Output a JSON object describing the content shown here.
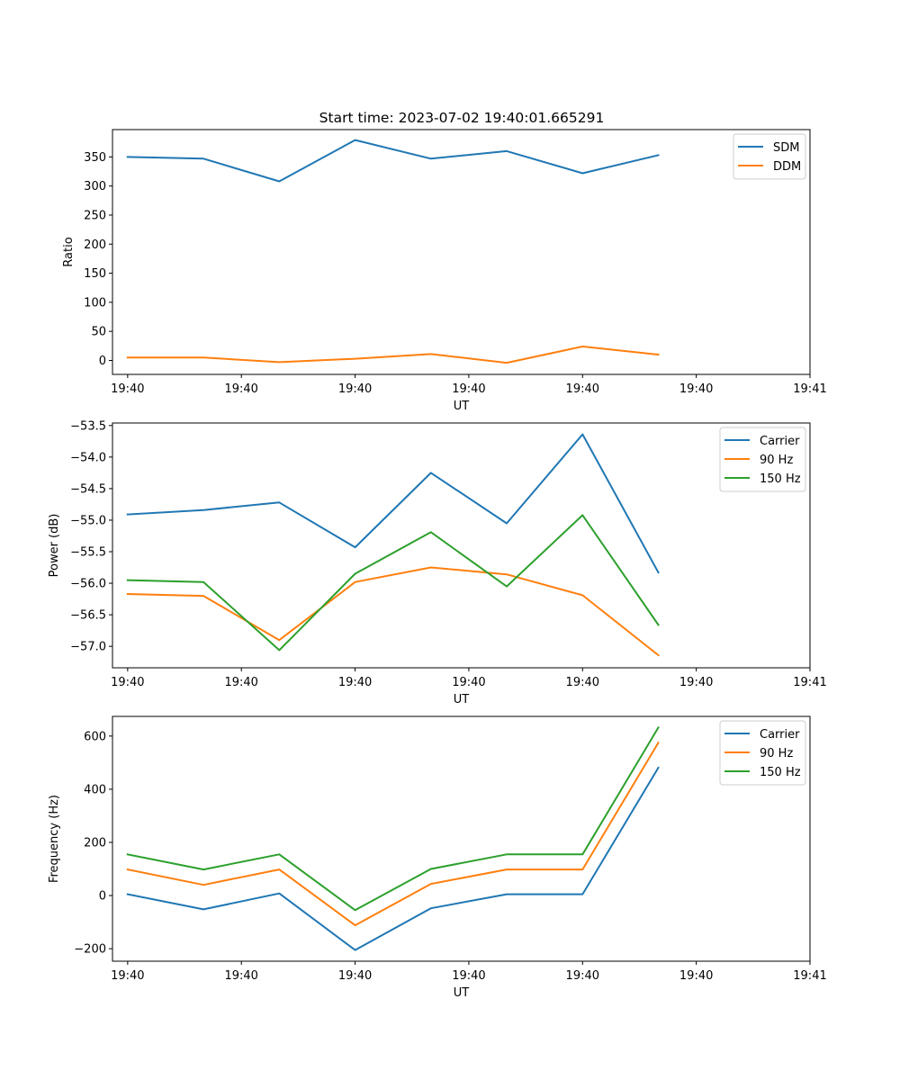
{
  "figure": {
    "title": "Start time: 2023-07-02 19:40:01.665291"
  },
  "colors": {
    "blue": "#1f77b4",
    "orange": "#ff7f0e",
    "green": "#2ca02c"
  },
  "chart_data": [
    {
      "type": "line",
      "title": "Start time: 2023-07-02 19:40:01.665291",
      "xlabel": "UT",
      "ylabel": "Ratio",
      "x": [
        1,
        2,
        3,
        4,
        5,
        6,
        7,
        8
      ],
      "xlim": [
        0.8,
        10.0
      ],
      "xticks": [
        1.0,
        2.5,
        4.0,
        5.5,
        7.0,
        8.5,
        10.0
      ],
      "xtick_labels": [
        "19:40",
        "19:40",
        "19:40",
        "19:40",
        "19:40",
        "19:40",
        "19:41"
      ],
      "ylim": [
        -24,
        397
      ],
      "yticks": [
        0,
        50,
        100,
        150,
        200,
        250,
        300,
        350
      ],
      "ytick_labels": [
        "0",
        "50",
        "100",
        "150",
        "200",
        "250",
        "300",
        "350"
      ],
      "legend": "top-right",
      "grid": false,
      "series": [
        {
          "name": "SDM",
          "color": "#1f77b4",
          "values": [
            350,
            347,
            308,
            379,
            347,
            360,
            322,
            353
          ]
        },
        {
          "name": "DDM",
          "color": "#ff7f0e",
          "values": [
            5,
            5,
            -3,
            3,
            11,
            -4,
            24,
            10
          ]
        }
      ]
    },
    {
      "type": "line",
      "title": "",
      "xlabel": "UT",
      "ylabel": "Power (dB)",
      "x": [
        1,
        2,
        3,
        4,
        5,
        6,
        7,
        8
      ],
      "xlim": [
        0.8,
        10.0
      ],
      "xticks": [
        1.0,
        2.5,
        4.0,
        5.5,
        7.0,
        8.5,
        10.0
      ],
      "xtick_labels": [
        "19:40",
        "19:40",
        "19:40",
        "19:40",
        "19:40",
        "19:40",
        "19:41"
      ],
      "ylim": [
        -57.34,
        -53.46
      ],
      "yticks": [
        -57.0,
        -56.5,
        -56.0,
        -55.5,
        -55.0,
        -54.5,
        -54.0,
        -53.5
      ],
      "ytick_labels": [
        "−57.0",
        "−56.5",
        "−56.0",
        "−55.5",
        "−55.0",
        "−54.5",
        "−54.0",
        "−53.5"
      ],
      "legend": "top-right",
      "grid": false,
      "series": [
        {
          "name": "Carrier",
          "color": "#1f77b4",
          "values": [
            -54.91,
            -54.84,
            -54.72,
            -55.43,
            -54.25,
            -55.05,
            -53.64,
            -55.83
          ]
        },
        {
          "name": "90 Hz",
          "color": "#ff7f0e",
          "values": [
            -56.17,
            -56.2,
            -56.9,
            -55.98,
            -55.75,
            -55.86,
            -56.19,
            -57.14
          ]
        },
        {
          "name": "150 Hz",
          "color": "#2ca02c",
          "values": [
            -55.95,
            -55.98,
            -57.06,
            -55.85,
            -55.19,
            -56.05,
            -54.92,
            -56.66
          ]
        }
      ]
    },
    {
      "type": "line",
      "title": "",
      "xlabel": "UT",
      "ylabel": "Frequency (Hz)",
      "x": [
        1,
        2,
        3,
        4,
        5,
        6,
        7,
        8
      ],
      "xlim": [
        0.8,
        10.0
      ],
      "xticks": [
        1.0,
        2.5,
        4.0,
        5.5,
        7.0,
        8.5,
        10.0
      ],
      "xtick_labels": [
        "19:40",
        "19:40",
        "19:40",
        "19:40",
        "19:40",
        "19:40",
        "19:41"
      ],
      "ylim": [
        -247,
        674
      ],
      "yticks": [
        -200,
        0,
        200,
        400,
        600
      ],
      "ytick_labels": [
        "−200",
        "0",
        "200",
        "400",
        "600"
      ],
      "legend": "top-right",
      "grid": false,
      "series": [
        {
          "name": "Carrier",
          "color": "#1f77b4",
          "values": [
            5,
            -52,
            8,
            -205,
            -48,
            5,
            5,
            481
          ]
        },
        {
          "name": "90 Hz",
          "color": "#ff7f0e",
          "values": [
            98,
            40,
            98,
            -112,
            44,
            98,
            98,
            575
          ]
        },
        {
          "name": "150 Hz",
          "color": "#2ca02c",
          "values": [
            155,
            98,
            155,
            -55,
            100,
            155,
            155,
            632
          ]
        }
      ]
    }
  ]
}
